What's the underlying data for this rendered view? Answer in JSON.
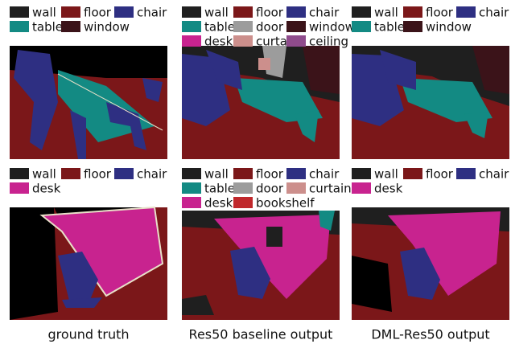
{
  "panels": [
    {
      "legend": [
        {
          "label": "wall",
          "color": "#1f1f1f"
        },
        {
          "label": "floor",
          "color": "#7b1719"
        },
        {
          "label": "chair",
          "color": "#2e2f82"
        },
        {
          "label": "table",
          "color": "#138a83"
        },
        {
          "label": "window",
          "color": "#3b1319"
        }
      ]
    },
    {
      "legend": [
        {
          "label": "wall",
          "color": "#1f1f1f"
        },
        {
          "label": "floor",
          "color": "#7b1719"
        },
        {
          "label": "chair",
          "color": "#2e2f82"
        },
        {
          "label": "table",
          "color": "#138a83"
        },
        {
          "label": "door",
          "color": "#9c9c9c"
        },
        {
          "label": "window",
          "color": "#3b1319"
        },
        {
          "label": "desk",
          "color": "#c8238f"
        },
        {
          "label": "curtain",
          "color": "#cc8f8c"
        },
        {
          "label": "ceiling",
          "color": "#8f4b8c"
        }
      ]
    },
    {
      "legend": [
        {
          "label": "wall",
          "color": "#1f1f1f"
        },
        {
          "label": "floor",
          "color": "#7b1719"
        },
        {
          "label": "chair",
          "color": "#2e2f82"
        },
        {
          "label": "table",
          "color": "#138a83"
        },
        {
          "label": "window",
          "color": "#3b1319"
        }
      ]
    },
    {
      "legend": [
        {
          "label": "wall",
          "color": "#1f1f1f"
        },
        {
          "label": "floor",
          "color": "#7b1719"
        },
        {
          "label": "chair",
          "color": "#2e2f82"
        },
        {
          "label": "desk",
          "color": "#c8238f"
        }
      ]
    },
    {
      "legend": [
        {
          "label": "wall",
          "color": "#1f1f1f"
        },
        {
          "label": "floor",
          "color": "#7b1719"
        },
        {
          "label": "chair",
          "color": "#2e2f82"
        },
        {
          "label": "table",
          "color": "#138a83"
        },
        {
          "label": "door",
          "color": "#9c9c9c"
        },
        {
          "label": "curtain",
          "color": "#cc8f8c"
        },
        {
          "label": "desk",
          "color": "#c8238f"
        },
        {
          "label": "bookshelf",
          "color": "#c0282c"
        }
      ]
    },
    {
      "legend": [
        {
          "label": "wall",
          "color": "#1f1f1f"
        },
        {
          "label": "floor",
          "color": "#7b1719"
        },
        {
          "label": "chair",
          "color": "#2e2f82"
        },
        {
          "label": "desk",
          "color": "#c8238f"
        }
      ]
    }
  ],
  "captions": [
    "ground truth",
    "Res50 baseline output",
    "DML-Res50 output"
  ]
}
